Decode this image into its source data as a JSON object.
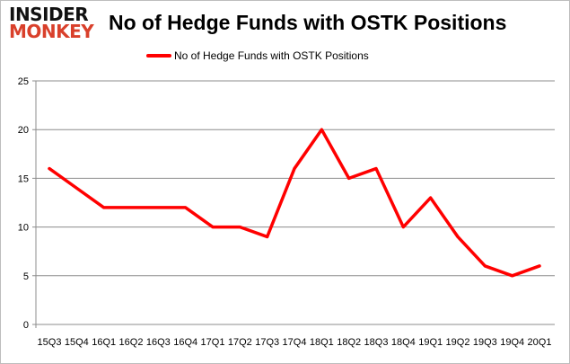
{
  "logo": {
    "line1": "INSIDER",
    "line2": "MONKEY"
  },
  "chart_data": {
    "type": "line",
    "title": "No of Hedge Funds with OSTK Positions",
    "xlabel": "",
    "ylabel": "",
    "categories": [
      "15Q3",
      "15Q4",
      "16Q1",
      "16Q2",
      "16Q3",
      "16Q4",
      "17Q1",
      "17Q2",
      "17Q3",
      "17Q4",
      "18Q1",
      "18Q2",
      "18Q3",
      "18Q4",
      "19Q1",
      "19Q2",
      "19Q3",
      "19Q4",
      "20Q1"
    ],
    "series": [
      {
        "name": "No of Hedge Funds with OSTK Positions",
        "color": "#ff0000",
        "values": [
          16,
          14,
          12,
          12,
          12,
          12,
          10,
          10,
          9,
          16,
          20,
          15,
          16,
          10,
          13,
          9,
          6,
          5,
          6
        ]
      }
    ],
    "ylim": [
      0,
      25
    ],
    "yticks": [
      0,
      5,
      10,
      15,
      20,
      25
    ],
    "grid": true,
    "legend": "top-center"
  }
}
